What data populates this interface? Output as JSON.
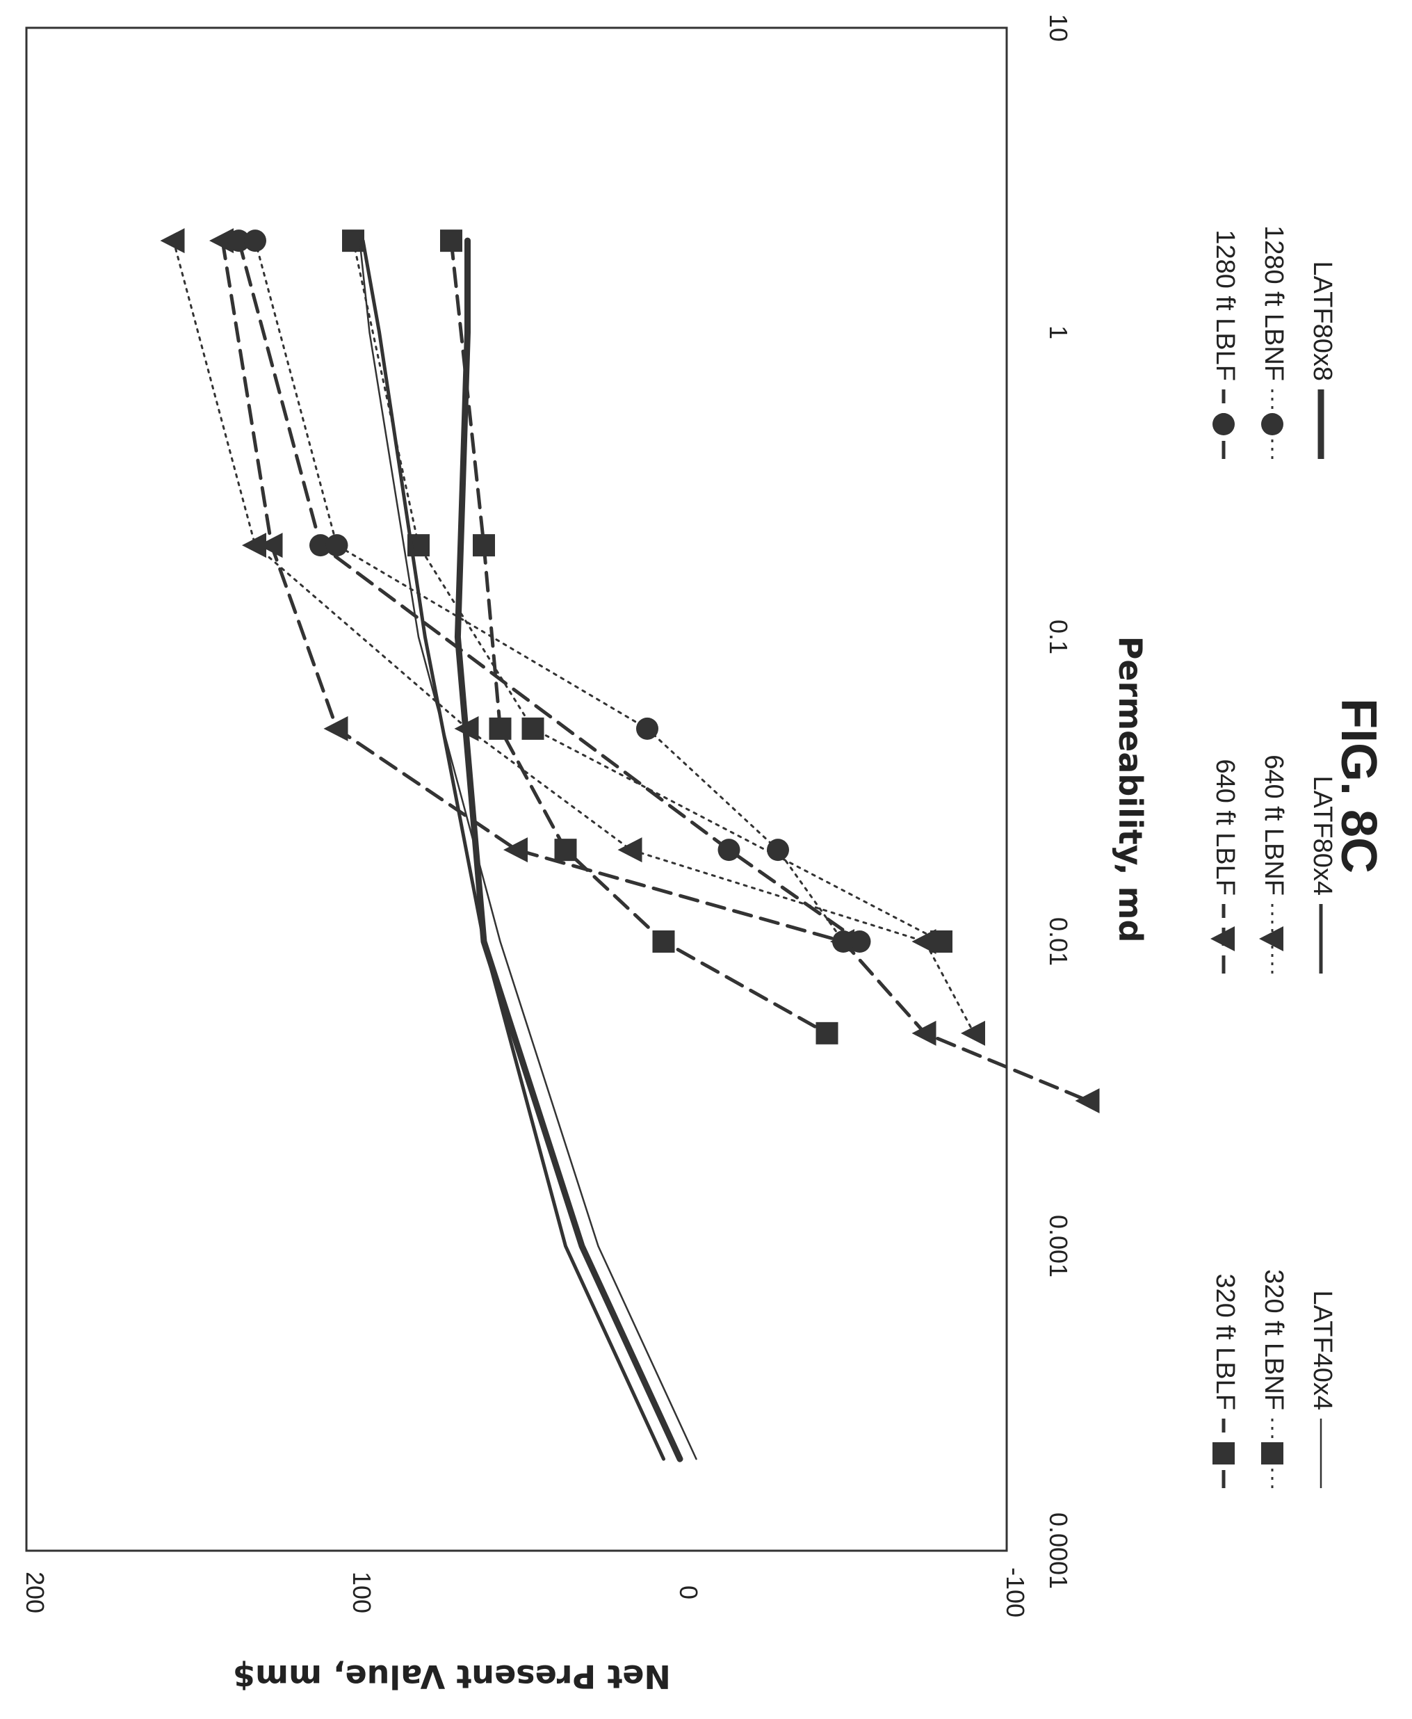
{
  "figure_label": "FIG. 8C",
  "chart_data": {
    "type": "line",
    "title": "",
    "xlabel": "Permeability, md",
    "ylabel": "Net Present Value, mm$",
    "xscale": "log",
    "xlim": [
      0.0001,
      10
    ],
    "ylim": [
      -100,
      200
    ],
    "x_ticks": [
      "0.0001",
      "0.001",
      "0.01",
      "0.1",
      "1",
      "10"
    ],
    "y_ticks": [
      "-100",
      "0",
      "100",
      "200"
    ],
    "grid": false,
    "legend_position": "bottom",
    "series": [
      {
        "name": "320 ft LBLF",
        "color": "#333333",
        "line": "dashed",
        "marker": "square",
        "x": [
          2,
          0.2,
          0.05,
          0.02,
          0.01,
          0.005
        ],
        "y": [
          70,
          60,
          55,
          35,
          5,
          -45
        ]
      },
      {
        "name": "320 ft LBNF",
        "color": "#333333",
        "line": "dotted",
        "marker": "square",
        "x": [
          2,
          0.2,
          0.05,
          0.01
        ],
        "y": [
          100,
          80,
          45,
          -80
        ]
      },
      {
        "name": "LATF40x4",
        "color": "#333333",
        "line": "thin",
        "marker": "none",
        "x": [
          0.0002,
          0.001,
          0.01,
          0.1,
          1,
          2
        ],
        "y": [
          -5,
          25,
          55,
          80,
          95,
          98
        ]
      },
      {
        "name": "640 ft LBLF",
        "color": "#333333",
        "line": "dashed",
        "marker": "triangle",
        "x": [
          2,
          0.2,
          0.05,
          0.02,
          0.01,
          0.005,
          0.003
        ],
        "y": [
          140,
          125,
          105,
          50,
          -50,
          -75,
          -125
        ]
      },
      {
        "name": "640 ft LBNF",
        "color": "#333333",
        "line": "dotted",
        "marker": "triangle",
        "x": [
          2,
          0.2,
          0.05,
          0.02,
          0.01,
          0.005
        ],
        "y": [
          155,
          130,
          65,
          15,
          -75,
          -90
        ]
      },
      {
        "name": "LATF80x4",
        "color": "#333333",
        "line": "solid",
        "marker": "none",
        "x": [
          0.0002,
          0.001,
          0.01,
          0.1,
          1,
          2
        ],
        "y": [
          5,
          35,
          60,
          78,
          92,
          97
        ]
      },
      {
        "name": "1280 ft LBLF",
        "color": "#333333",
        "line": "dashed",
        "marker": "circle",
        "x": [
          2,
          0.2,
          0.02,
          0.01
        ],
        "y": [
          135,
          110,
          -15,
          -55
        ]
      },
      {
        "name": "1280 ft LBNF",
        "color": "#333333",
        "line": "dotted",
        "marker": "circle",
        "x": [
          2,
          0.2,
          0.05,
          0.02,
          0.01
        ],
        "y": [
          130,
          105,
          10,
          -30,
          -50
        ]
      },
      {
        "name": "LATF80x8",
        "color": "#333333",
        "line": "thick",
        "marker": "none",
        "x": [
          0.0002,
          0.001,
          0.01,
          0.1,
          1,
          2
        ],
        "y": [
          0,
          30,
          60,
          68,
          65,
          65
        ]
      }
    ]
  }
}
